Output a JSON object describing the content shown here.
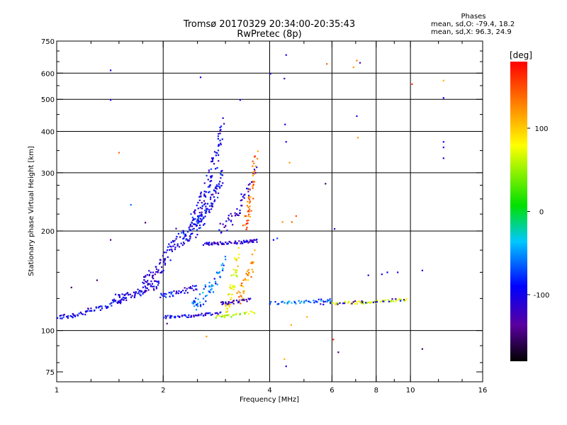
{
  "title_line1": "Tromsø 20170329 20:34:00-20:35:43",
  "title_line2": "RwPretec (8p)",
  "phases": {
    "heading": "Phases",
    "line1": "mean, sd,O: -79.4, 18.2",
    "line2": "mean, sd,X:  96.3, 24.9"
  },
  "colorbar": {
    "unit_label": "[deg]",
    "ticks": [
      {
        "value": 100,
        "label": "100"
      },
      {
        "value": 0,
        "label": "0"
      },
      {
        "value": -100,
        "label": "-100"
      }
    ],
    "range": [
      -180,
      180
    ]
  },
  "chart_data": {
    "type": "scatter",
    "xlabel": "Frequency [MHz]",
    "ylabel": "Stationary phase Virtual Height [km]",
    "xscale": "log",
    "yscale": "log",
    "xlim": [
      1,
      16
    ],
    "ylim": [
      70,
      750
    ],
    "x_ticks": [
      1,
      2,
      4,
      6,
      8,
      10,
      16
    ],
    "x_minor_ticks": [
      1.25,
      1.5,
      1.75,
      2.5,
      3,
      3.5,
      5,
      7,
      9,
      12,
      14
    ],
    "y_ticks": [
      75,
      100,
      200,
      300,
      400,
      500,
      600,
      750
    ],
    "y_minor_ticks": [
      80,
      90,
      125,
      150,
      175,
      225,
      250,
      275,
      350,
      450,
      550,
      650,
      700
    ],
    "x_grid": [
      2,
      4,
      6,
      8,
      10
    ],
    "y_grid": [
      100,
      200,
      300,
      400,
      500,
      600
    ],
    "grid": true,
    "color_scale": "phase in degrees (rainbow)",
    "traces": [
      {
        "x_range": [
          1.0,
          1.55
        ],
        "h_range": [
          110,
          125
        ],
        "phase": -100,
        "n": 70,
        "spread": 0.02
      },
      {
        "x_range": [
          1.45,
          1.95
        ],
        "h_range": [
          125,
          140
        ],
        "phase": -105,
        "n": 70,
        "spread": 0.03
      },
      {
        "x_range": [
          1.75,
          2.2
        ],
        "h_range": [
          140,
          195
        ],
        "phase": -110,
        "n": 80,
        "spread": 0.05
      },
      {
        "x_range": [
          1.95,
          2.5
        ],
        "h_range": [
          128,
          136
        ],
        "phase": -95,
        "n": 40,
        "spread": 0.02
      },
      {
        "x_range": [
          2.25,
          2.95
        ],
        "h_range": [
          190,
          290
        ],
        "phase": -95,
        "n": 120,
        "spread": 0.06
      },
      {
        "x_range": [
          2.4,
          2.95
        ],
        "h_range": [
          220,
          410
        ],
        "phase": -100,
        "n": 100,
        "spread": 0.07
      },
      {
        "x_range": [
          2.6,
          3.7
        ],
        "h_range": [
          183,
          187
        ],
        "phase": -110,
        "n": 70,
        "spread": 0.01
      },
      {
        "x_range": [
          2.9,
          3.65
        ],
        "h_range": [
          205,
          300
        ],
        "phase": -110,
        "n": 50,
        "spread": 0.04
      },
      {
        "x_range": [
          2.0,
          2.9
        ],
        "h_range": [
          110,
          113
        ],
        "phase": -100,
        "n": 55,
        "spread": 0.01
      },
      {
        "x_range": [
          2.4,
          3.0
        ],
        "h_range": [
          120,
          160
        ],
        "phase": -60,
        "n": 60,
        "spread": 0.05
      },
      {
        "x_range": [
          3.0,
          3.25
        ],
        "h_range": [
          115,
          175
        ],
        "phase": 80,
        "n": 50,
        "spread": 0.04
      },
      {
        "x_range": [
          3.25,
          3.6
        ],
        "h_range": [
          125,
          170
        ],
        "phase": 120,
        "n": 40,
        "spread": 0.05
      },
      {
        "x_range": [
          3.4,
          3.65
        ],
        "h_range": [
          210,
          340
        ],
        "phase": 140,
        "n": 50,
        "spread": 0.05
      },
      {
        "x_range": [
          2.8,
          3.6
        ],
        "h_range": [
          110,
          114
        ],
        "phase": 60,
        "n": 25,
        "spread": 0.01
      },
      {
        "x_range": [
          2.9,
          3.5
        ],
        "h_range": [
          121,
          124
        ],
        "phase": -120,
        "n": 30,
        "spread": 0.01
      },
      {
        "x_range": [
          4.0,
          6.0
        ],
        "h_range": [
          121,
          124
        ],
        "phase": -60,
        "n": 45,
        "spread": 0.01
      },
      {
        "x_range": [
          6.0,
          9.7
        ],
        "h_range": [
          121,
          124
        ],
        "phase": 70,
        "n": 55,
        "spread": 0.01
      },
      {
        "x_range": [
          5.5,
          9.5
        ],
        "h_range": [
          121,
          124
        ],
        "phase": -110,
        "n": 25,
        "spread": 0.01
      }
    ],
    "scattered_points": [
      {
        "x": 1.42,
        "h": 612,
        "phase": -100
      },
      {
        "x": 1.42,
        "h": 498,
        "phase": -100
      },
      {
        "x": 1.42,
        "h": 188,
        "phase": -140
      },
      {
        "x": 1.5,
        "h": 345,
        "phase": 140
      },
      {
        "x": 1.62,
        "h": 240,
        "phase": -60
      },
      {
        "x": 1.78,
        "h": 212,
        "phase": -150
      },
      {
        "x": 1.3,
        "h": 142,
        "phase": -150
      },
      {
        "x": 1.1,
        "h": 135,
        "phase": -150
      },
      {
        "x": 2.55,
        "h": 583,
        "phase": -100
      },
      {
        "x": 2.65,
        "h": 96,
        "phase": 120
      },
      {
        "x": 2.05,
        "h": 105,
        "phase": -140
      },
      {
        "x": 3.3,
        "h": 498,
        "phase": -100
      },
      {
        "x": 4.02,
        "h": 598,
        "phase": -110
      },
      {
        "x": 4.45,
        "h": 681,
        "phase": -100
      },
      {
        "x": 4.4,
        "h": 578,
        "phase": -120
      },
      {
        "x": 4.42,
        "h": 420,
        "phase": -100
      },
      {
        "x": 4.45,
        "h": 372,
        "phase": -100
      },
      {
        "x": 4.55,
        "h": 322,
        "phase": 120
      },
      {
        "x": 4.35,
        "h": 213,
        "phase": 120
      },
      {
        "x": 4.62,
        "h": 213,
        "phase": 140
      },
      {
        "x": 4.75,
        "h": 222,
        "phase": 150
      },
      {
        "x": 4.4,
        "h": 82,
        "phase": 110
      },
      {
        "x": 4.45,
        "h": 78,
        "phase": -100
      },
      {
        "x": 4.6,
        "h": 104,
        "phase": 110
      },
      {
        "x": 4.1,
        "h": 188,
        "phase": -90
      },
      {
        "x": 4.2,
        "h": 190,
        "phase": -70
      },
      {
        "x": 5.1,
        "h": 110,
        "phase": 110
      },
      {
        "x": 5.8,
        "h": 640,
        "phase": 140
      },
      {
        "x": 5.75,
        "h": 278,
        "phase": -150
      },
      {
        "x": 6.1,
        "h": 203,
        "phase": -120
      },
      {
        "x": 6.05,
        "h": 94,
        "phase": 170
      },
      {
        "x": 6.25,
        "h": 86,
        "phase": -150
      },
      {
        "x": 6.9,
        "h": 625,
        "phase": 120
      },
      {
        "x": 7.05,
        "h": 655,
        "phase": 130
      },
      {
        "x": 7.2,
        "h": 645,
        "phase": -130
      },
      {
        "x": 7.05,
        "h": 445,
        "phase": -110
      },
      {
        "x": 7.1,
        "h": 383,
        "phase": 120
      },
      {
        "x": 7.6,
        "h": 147,
        "phase": -110
      },
      {
        "x": 8.3,
        "h": 148,
        "phase": -100
      },
      {
        "x": 8.6,
        "h": 150,
        "phase": -90
      },
      {
        "x": 9.2,
        "h": 150,
        "phase": -110
      },
      {
        "x": 10.1,
        "h": 556,
        "phase": 160
      },
      {
        "x": 10.8,
        "h": 152,
        "phase": -100
      },
      {
        "x": 10.8,
        "h": 88,
        "phase": -150
      },
      {
        "x": 12.4,
        "h": 570,
        "phase": 110
      },
      {
        "x": 12.4,
        "h": 505,
        "phase": -100
      },
      {
        "x": 12.4,
        "h": 372,
        "phase": -100
      },
      {
        "x": 12.4,
        "h": 358,
        "phase": -100
      },
      {
        "x": 12.4,
        "h": 332,
        "phase": -110
      }
    ]
  }
}
